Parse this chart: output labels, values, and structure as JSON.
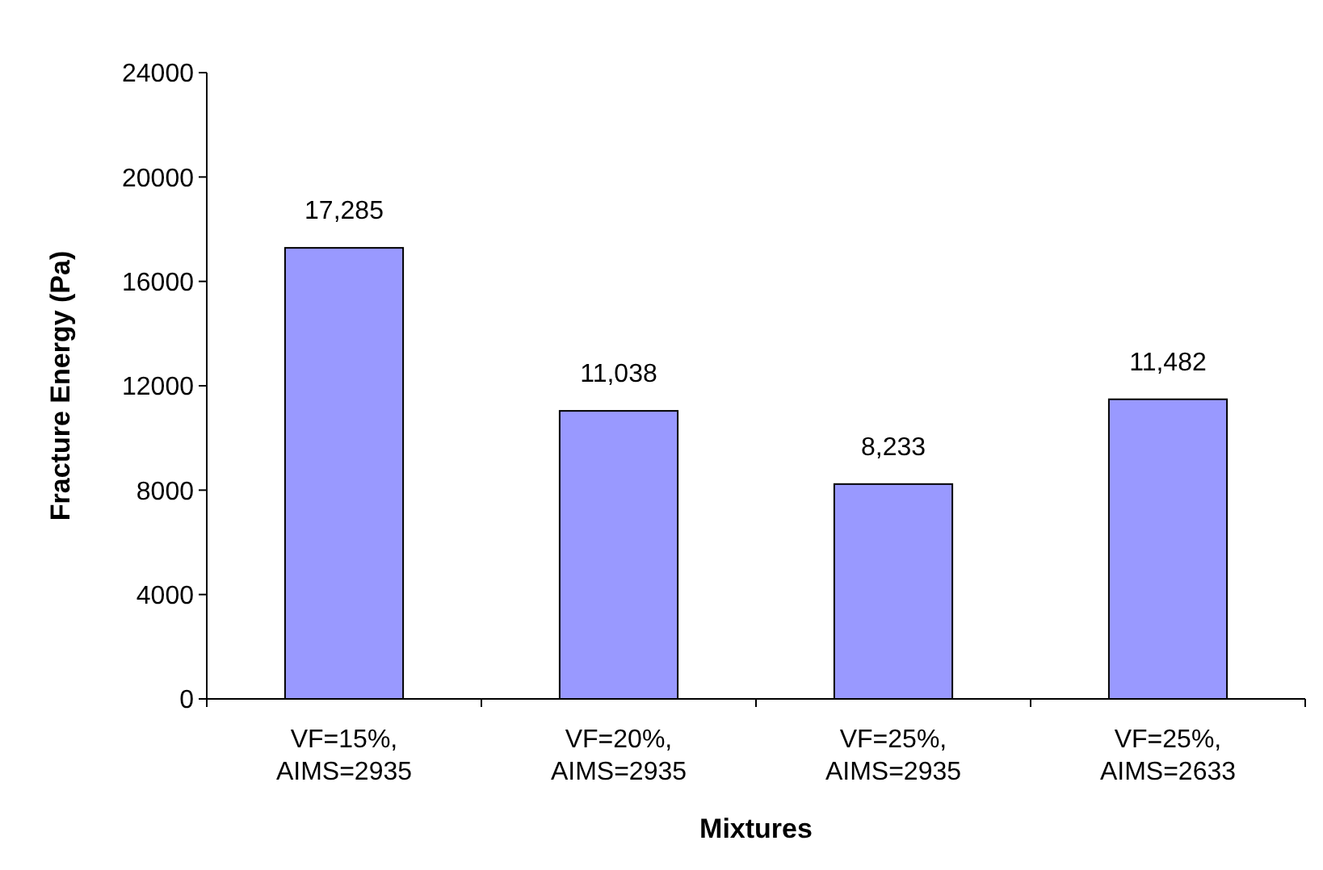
{
  "chart_data": {
    "type": "bar",
    "xlabel": "Mixtures",
    "ylabel": "Fracture Energy (Pa)",
    "categories": [
      "VF=15%, AIMS=2935",
      "VF=20%, AIMS=2935",
      "VF=25%, AIMS=2935",
      "VF=25%, AIMS=2633"
    ],
    "values": [
      17285,
      11038,
      8233,
      11482
    ],
    "color": "#9999ff",
    "ylim": [
      0,
      24000
    ],
    "yticks": [
      0,
      4000,
      8000,
      12000,
      16000,
      20000,
      24000
    ],
    "value_labels": [
      "17,285",
      "11,038",
      "8,233",
      "11,482"
    ],
    "grid": false
  }
}
